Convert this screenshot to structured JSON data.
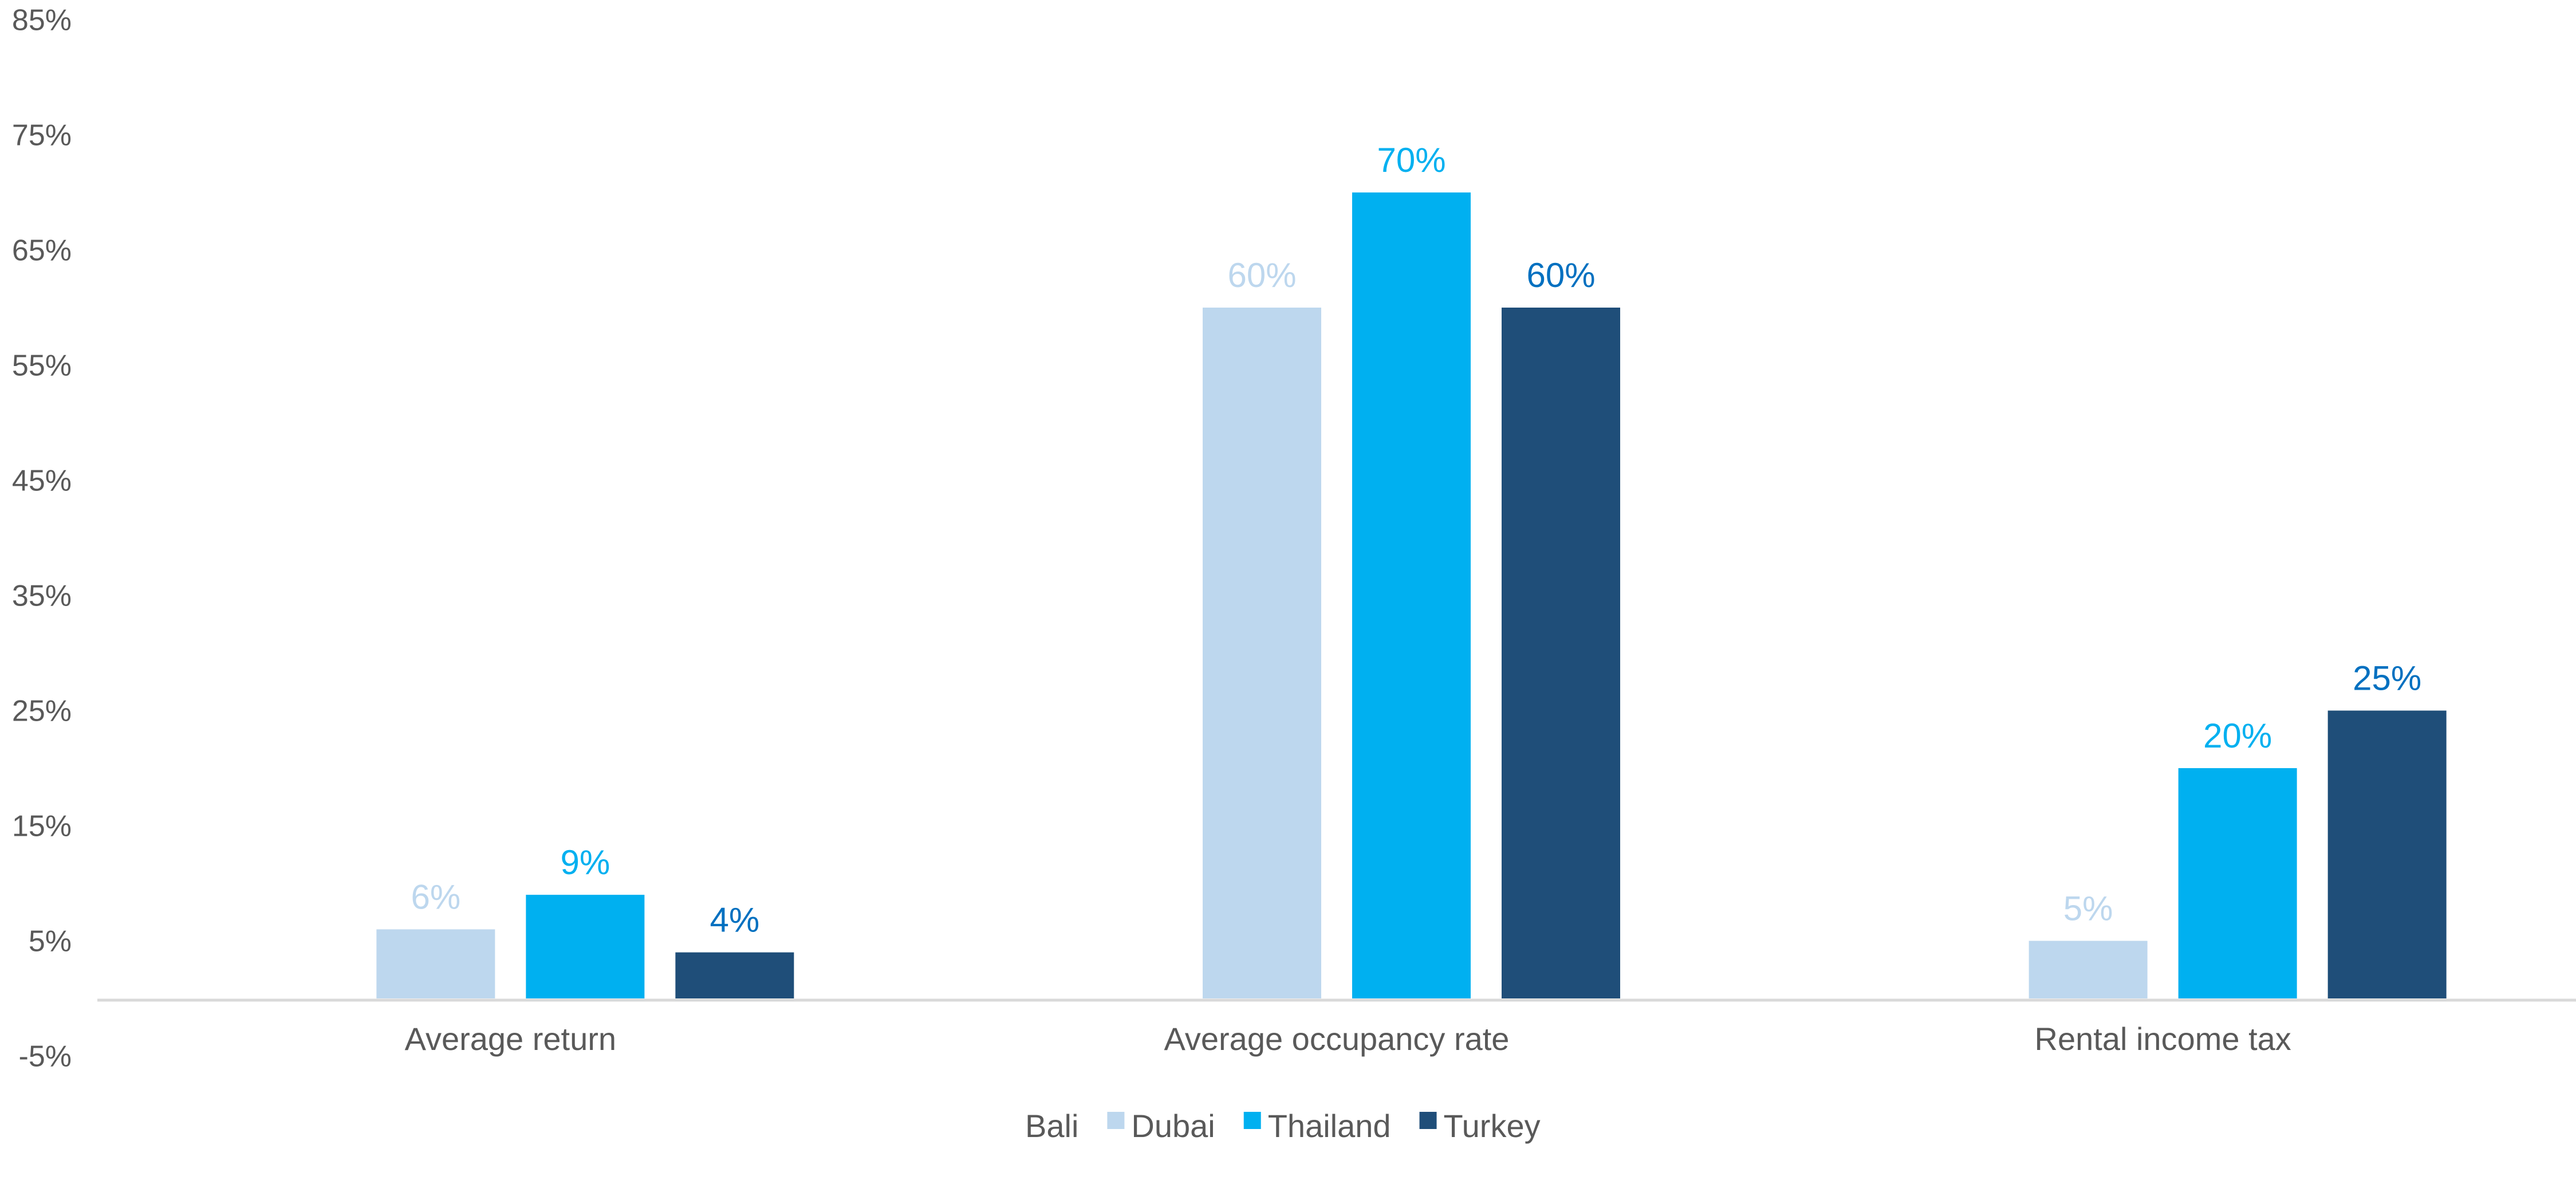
{
  "chart_data": {
    "type": "bar",
    "title": "",
    "xlabel": "",
    "ylabel": "",
    "ylim": [
      -5,
      85
    ],
    "yticks": [
      "85%",
      "75%",
      "65%",
      "55%",
      "45%",
      "35%",
      "25%",
      "15%",
      "5%",
      "-5%"
    ],
    "ytick_values": [
      85,
      75,
      65,
      55,
      45,
      35,
      25,
      15,
      5,
      -5
    ],
    "grid": false,
    "legend_position": "bottom",
    "categories": [
      "Average return",
      "Average occupancy rate",
      "Rental income tax"
    ],
    "series": [
      {
        "name": "Bali",
        "values": [
          null,
          null,
          null
        ],
        "color": "#595959",
        "label_color": "#595959"
      },
      {
        "name": "Dubai",
        "values": [
          6,
          60,
          5
        ],
        "labels": [
          "6%",
          "60%",
          "5%"
        ],
        "color": "#BDD7EE",
        "label_color": "#BDD7EE"
      },
      {
        "name": "Thailand",
        "values": [
          9,
          70,
          20
        ],
        "labels": [
          "9%",
          "70%",
          "20%"
        ],
        "color": "#00B0F0",
        "label_color": "#00B0F0"
      },
      {
        "name": "Turkey",
        "values": [
          4,
          60,
          25
        ],
        "labels": [
          "4%",
          "60%",
          "25%"
        ],
        "color": "#1F4E79",
        "label_color": "#0070C0"
      }
    ],
    "axis_color": "#D9D9D9"
  }
}
